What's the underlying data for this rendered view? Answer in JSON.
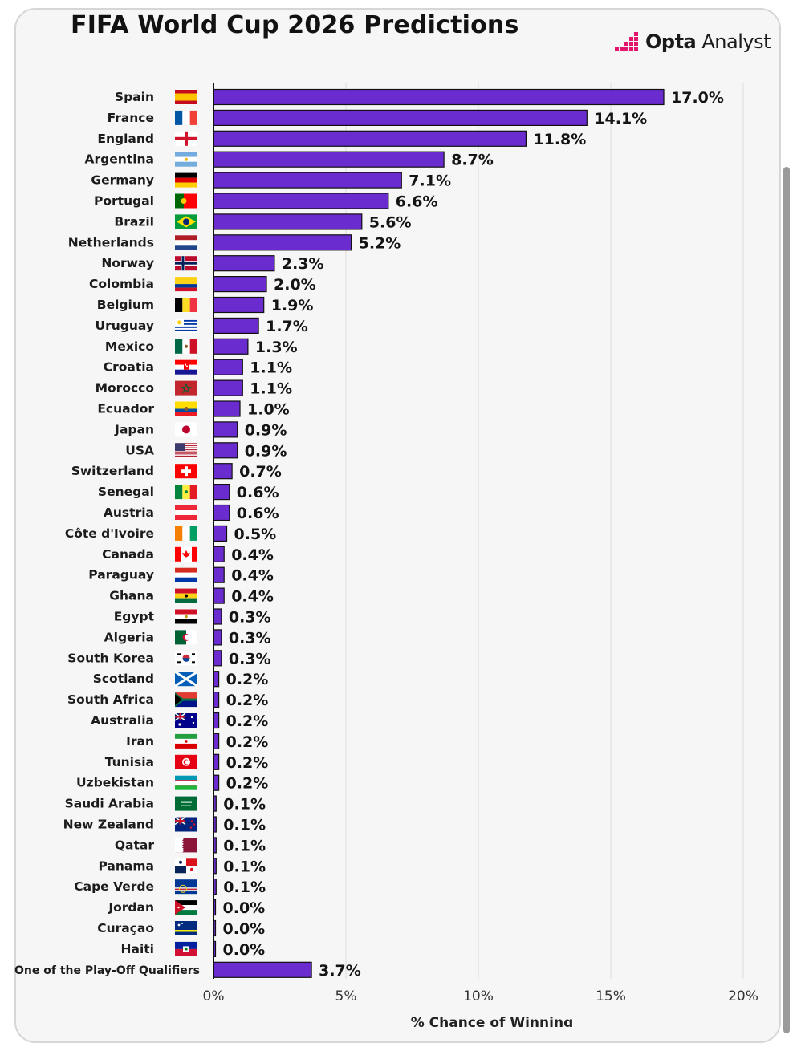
{
  "header": {
    "title": "FIFA World Cup 2026 Predictions",
    "brand_bold": "Opta",
    "brand_light": "Analyst"
  },
  "chart_data": {
    "type": "bar",
    "orientation": "horizontal",
    "title": "FIFA World Cup 2026 Predictions",
    "xlabel": "% Chance of Winning",
    "ylabel": "",
    "xlim": [
      0,
      20
    ],
    "xticks": [
      "0%",
      "5%",
      "10%",
      "15%",
      "20%"
    ],
    "grid": "vertical",
    "bar_color": "#6a2bcf",
    "categories": [
      "Spain",
      "France",
      "England",
      "Argentina",
      "Germany",
      "Portugal",
      "Brazil",
      "Netherlands",
      "Norway",
      "Colombia",
      "Belgium",
      "Uruguay",
      "Mexico",
      "Croatia",
      "Morocco",
      "Ecuador",
      "Japan",
      "USA",
      "Switzerland",
      "Senegal",
      "Austria",
      "Côte d'Ivoire",
      "Canada",
      "Paraguay",
      "Ghana",
      "Egypt",
      "Algeria",
      "South Korea",
      "Scotland",
      "South Africa",
      "Australia",
      "Iran",
      "Tunisia",
      "Uzbekistan",
      "Saudi Arabia",
      "New Zealand",
      "Qatar",
      "Panama",
      "Cape Verde",
      "Jordan",
      "Curaçao",
      "Haiti",
      "One of the Play-Off Qualifiers"
    ],
    "values": [
      17.0,
      14.1,
      11.8,
      8.7,
      7.1,
      6.6,
      5.6,
      5.2,
      2.3,
      2.0,
      1.9,
      1.7,
      1.3,
      1.1,
      1.1,
      1.0,
      0.9,
      0.9,
      0.7,
      0.6,
      0.6,
      0.5,
      0.4,
      0.4,
      0.4,
      0.3,
      0.3,
      0.3,
      0.2,
      0.2,
      0.2,
      0.2,
      0.2,
      0.2,
      0.1,
      0.1,
      0.1,
      0.1,
      0.1,
      0.0,
      0.0,
      0.0,
      3.7
    ],
    "labels": [
      "17.0%",
      "14.1%",
      "11.8%",
      "8.7%",
      "7.1%",
      "6.6%",
      "5.6%",
      "5.2%",
      "2.3%",
      "2.0%",
      "1.9%",
      "1.7%",
      "1.3%",
      "1.1%",
      "1.1%",
      "1.0%",
      "0.9%",
      "0.9%",
      "0.7%",
      "0.6%",
      "0.6%",
      "0.5%",
      "0.4%",
      "0.4%",
      "0.4%",
      "0.3%",
      "0.3%",
      "0.3%",
      "0.2%",
      "0.2%",
      "0.2%",
      "0.2%",
      "0.2%",
      "0.2%",
      "0.1%",
      "0.1%",
      "0.1%",
      "0.1%",
      "0.1%",
      "0.0%",
      "0.0%",
      "0.0%",
      "3.7%"
    ],
    "flags": [
      "es",
      "fr",
      "en",
      "ar",
      "de",
      "pt",
      "br",
      "nl",
      "no",
      "co",
      "be",
      "uy",
      "mx",
      "hr",
      "ma",
      "ec",
      "jp",
      "us",
      "ch",
      "sn",
      "at",
      "ci",
      "ca",
      "py",
      "gh",
      "eg",
      "dz",
      "kr",
      "sc",
      "za",
      "au",
      "ir",
      "tn",
      "uz",
      "sa",
      "nz",
      "qa",
      "pa",
      "cv",
      "jo",
      "cw",
      "ht",
      ""
    ]
  }
}
